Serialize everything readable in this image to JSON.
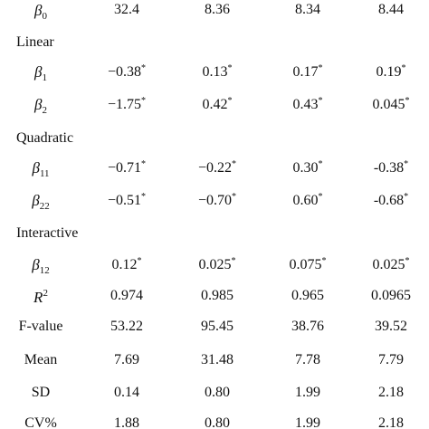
{
  "rows": [
    {
      "kind": "coef",
      "symbol": "β",
      "sub": "0",
      "values": [
        "32.4",
        "8.36",
        "8.34",
        "8.44"
      ],
      "stars": [
        false,
        false,
        false,
        false
      ]
    },
    {
      "kind": "section",
      "label": "Linear"
    },
    {
      "kind": "coef",
      "symbol": "β",
      "sub": "1",
      "values": [
        "−0.38",
        "0.13",
        "0.17",
        "0.19"
      ],
      "stars": [
        true,
        true,
        true,
        true
      ]
    },
    {
      "kind": "coef",
      "symbol": "β",
      "sub": "2",
      "values": [
        "−1.75",
        "0.42",
        "0.43",
        "0.045"
      ],
      "stars": [
        true,
        true,
        true,
        true
      ]
    },
    {
      "kind": "section",
      "label": "Quadratic"
    },
    {
      "kind": "coef",
      "symbol": "β",
      "sub": "11",
      "values": [
        "−0.71",
        "−0.22",
        "0.30",
        "-0.38"
      ],
      "stars": [
        true,
        true,
        true,
        true
      ]
    },
    {
      "kind": "coef",
      "symbol": "β",
      "sub": "22",
      "values": [
        "−0.51",
        "−0.70",
        "0.60",
        "-0.68"
      ],
      "stars": [
        true,
        true,
        true,
        true
      ]
    },
    {
      "kind": "section",
      "label": "Interactive"
    },
    {
      "kind": "coef",
      "symbol": "β",
      "sub": "12",
      "values": [
        "0.12",
        "0.025",
        "0.075",
        "0.025"
      ],
      "stars": [
        true,
        true,
        true,
        true
      ]
    },
    {
      "kind": "coef",
      "symbol": "R",
      "sup": "2",
      "values": [
        "0.974",
        "0.985",
        "0.965",
        "0.0965"
      ],
      "stars": [
        false,
        false,
        false,
        false
      ]
    },
    {
      "kind": "stat",
      "label": "F-value",
      "values": [
        "53.22",
        "95.45",
        "38.76",
        "39.52"
      ]
    },
    {
      "kind": "stat",
      "label": "Mean",
      "values": [
        "7.69",
        "31.48",
        "7.78",
        "7.79"
      ]
    },
    {
      "kind": "stat",
      "label": "SD",
      "values": [
        "0.14",
        "0.80",
        "1.99",
        "2.18"
      ]
    },
    {
      "kind": "stat",
      "label": "CV%",
      "values": [
        "1.88",
        "0.80",
        "1.99",
        "2.18"
      ]
    }
  ],
  "star_symbol": "*"
}
